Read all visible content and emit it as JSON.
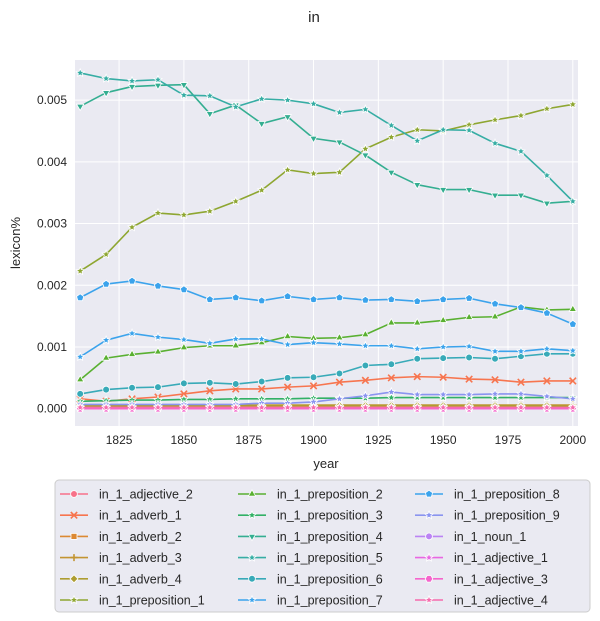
{
  "chart_data": {
    "type": "line",
    "title": "in",
    "xlabel": "year",
    "ylabel": "lexicon%",
    "xlim": [
      1808,
      2002
    ],
    "ylim": [
      -0.00028,
      0.00565
    ],
    "xticks": [
      1825,
      1850,
      1875,
      1900,
      1925,
      1950,
      1975,
      2000
    ],
    "yticks": [
      0.0,
      0.001,
      0.002,
      0.003,
      0.004,
      0.005
    ],
    "ytick_labels": [
      "0.000",
      "0.001",
      "0.002",
      "0.003",
      "0.004",
      "0.005"
    ],
    "grid": true,
    "legend_position": "bottom",
    "x": [
      1810,
      1820,
      1830,
      1840,
      1850,
      1860,
      1870,
      1880,
      1890,
      1900,
      1910,
      1920,
      1930,
      1940,
      1950,
      1960,
      1970,
      1980,
      1990,
      2000
    ],
    "series": [
      {
        "name": "in_1_adjective_2",
        "color": "#f77189",
        "marker": "circle",
        "values": [
          1e-05,
          1e-05,
          1e-05,
          1e-05,
          1e-05,
          1e-05,
          1e-05,
          1e-05,
          1e-05,
          1e-05,
          1e-05,
          1e-05,
          1e-05,
          1e-05,
          1e-05,
          1e-05,
          1e-05,
          1e-05,
          1e-05,
          1e-05
        ]
      },
      {
        "name": "in_1_adverb_1",
        "color": "#f7754f",
        "marker": "x",
        "values": [
          0.00016,
          0.00012,
          0.00016,
          0.00019,
          0.00024,
          0.00029,
          0.00032,
          0.00032,
          0.00035,
          0.00037,
          0.00043,
          0.00046,
          0.0005,
          0.00052,
          0.00051,
          0.00048,
          0.00047,
          0.00043,
          0.00045,
          0.00045
        ]
      },
      {
        "name": "in_1_adverb_2",
        "color": "#dc8932",
        "marker": "square",
        "values": [
          3e-05,
          3e-05,
          3e-05,
          3e-05,
          3e-05,
          3e-05,
          3e-05,
          3e-05,
          3e-05,
          3e-05,
          3e-05,
          3e-05,
          3e-05,
          3e-05,
          3e-05,
          3e-05,
          3e-05,
          3e-05,
          3e-05,
          3e-05
        ]
      },
      {
        "name": "in_1_adverb_3",
        "color": "#c39532",
        "marker": "plus",
        "values": [
          6e-05,
          6e-05,
          6e-05,
          6e-05,
          6e-05,
          6e-05,
          6e-05,
          6e-05,
          6e-05,
          6e-05,
          6e-05,
          6e-05,
          6e-05,
          6e-05,
          6e-05,
          6e-05,
          6e-05,
          6e-05,
          6e-05,
          6e-05
        ]
      },
      {
        "name": "in_1_adverb_4",
        "color": "#ae9d31",
        "marker": "diamond",
        "values": [
          4e-05,
          4e-05,
          5e-05,
          5e-05,
          5e-05,
          5e-05,
          5e-05,
          5e-05,
          5e-05,
          5e-05,
          5e-05,
          5e-05,
          5e-05,
          5e-05,
          5e-05,
          5e-05,
          5e-05,
          5e-05,
          5e-05,
          4e-05
        ]
      },
      {
        "name": "in_1_preposition_1",
        "color": "#8ea631",
        "marker": "star",
        "values": [
          0.00223,
          0.0025,
          0.00294,
          0.00317,
          0.00314,
          0.0032,
          0.00336,
          0.00354,
          0.00387,
          0.00381,
          0.00383,
          0.00421,
          0.0044,
          0.00452,
          0.0045,
          0.0046,
          0.00468,
          0.00475,
          0.00486,
          0.00493
        ]
      },
      {
        "name": "in_1_preposition_2",
        "color": "#59b031",
        "marker": "triangle-up",
        "values": [
          0.00047,
          0.00082,
          0.00088,
          0.00092,
          0.00099,
          0.00102,
          0.00102,
          0.00107,
          0.00117,
          0.00114,
          0.00115,
          0.0012,
          0.00139,
          0.00139,
          0.00143,
          0.00148,
          0.00149,
          0.00165,
          0.0016,
          0.00161
        ]
      },
      {
        "name": "in_1_preposition_3",
        "color": "#32b166",
        "marker": "star",
        "values": [
          0.00012,
          0.00013,
          0.00014,
          0.00014,
          0.00015,
          0.00015,
          0.00016,
          0.00016,
          0.00016,
          0.00017,
          0.00017,
          0.00017,
          0.00018,
          0.00018,
          0.00018,
          0.00018,
          0.00018,
          0.00018,
          0.00018,
          0.00018
        ]
      },
      {
        "name": "in_1_preposition_4",
        "color": "#34ae91",
        "marker": "triangle-down",
        "values": [
          0.0049,
          0.00512,
          0.00522,
          0.00524,
          0.00525,
          0.00478,
          0.00492,
          0.00462,
          0.00473,
          0.00438,
          0.00432,
          0.00411,
          0.00383,
          0.00363,
          0.00355,
          0.00355,
          0.00346,
          0.00346,
          0.00333,
          0.00336
        ]
      },
      {
        "name": "in_1_preposition_5",
        "color": "#36ada4",
        "marker": "star",
        "values": [
          0.00544,
          0.00535,
          0.00531,
          0.00533,
          0.00508,
          0.00507,
          0.00489,
          0.00502,
          0.005,
          0.00494,
          0.0048,
          0.00485,
          0.00459,
          0.00434,
          0.00452,
          0.00451,
          0.0043,
          0.00417,
          0.00378,
          0.00336
        ]
      },
      {
        "name": "in_1_preposition_6",
        "color": "#38aab8",
        "marker": "circle",
        "values": [
          0.00024,
          0.00031,
          0.00034,
          0.00035,
          0.00041,
          0.00042,
          0.0004,
          0.00044,
          0.0005,
          0.00051,
          0.00057,
          0.0007,
          0.00072,
          0.00081,
          0.00082,
          0.00083,
          0.00081,
          0.00085,
          0.00089,
          0.00089
        ]
      },
      {
        "name": "in_1_preposition_7",
        "color": "#3ba3ec",
        "marker": "star",
        "values": [
          0.00084,
          0.00111,
          0.00122,
          0.00116,
          0.00112,
          0.00106,
          0.00113,
          0.00113,
          0.00104,
          0.00107,
          0.00105,
          0.00102,
          0.00102,
          0.00097,
          0.001,
          0.00101,
          0.00093,
          0.00093,
          0.00097,
          0.00094
        ]
      },
      {
        "name": "in_1_preposition_8",
        "color": "#3ba3ec",
        "marker": "pentagon",
        "values": [
          0.0018,
          0.00202,
          0.00207,
          0.00199,
          0.00193,
          0.00177,
          0.0018,
          0.00175,
          0.00182,
          0.00177,
          0.0018,
          0.00176,
          0.00177,
          0.00174,
          0.00177,
          0.00179,
          0.0017,
          0.00164,
          0.00155,
          0.00137
        ]
      },
      {
        "name": "in_1_preposition_9",
        "color": "#8a94f0",
        "marker": "star",
        "values": [
          7e-05,
          7e-05,
          7e-05,
          7e-05,
          7e-05,
          7e-05,
          7e-05,
          9e-05,
          9e-05,
          0.00011,
          0.00016,
          0.00021,
          0.00027,
          0.00023,
          0.00023,
          0.00023,
          0.00024,
          0.00024,
          0.0002,
          0.00016
        ]
      },
      {
        "name": "in_1_noun_1",
        "color": "#bb83f4",
        "marker": "circle",
        "values": [
          1e-05,
          1e-05,
          1e-05,
          1e-05,
          1e-05,
          1e-05,
          1e-05,
          1e-05,
          1e-05,
          1e-05,
          1e-05,
          1e-05,
          1e-05,
          1e-05,
          1e-05,
          1e-05,
          1e-05,
          1e-05,
          1e-05,
          1e-05
        ]
      },
      {
        "name": "in_1_adjective_1",
        "color": "#e867e2",
        "marker": "star",
        "values": [
          1e-05,
          1e-05,
          1e-05,
          1e-05,
          1e-05,
          1e-05,
          1e-05,
          1e-05,
          1e-05,
          1e-05,
          1e-05,
          1e-05,
          1e-05,
          1e-05,
          1e-05,
          1e-05,
          1e-05,
          1e-05,
          1e-05,
          1e-05
        ]
      },
      {
        "name": "in_1_adjective_3",
        "color": "#f565cc",
        "marker": "hexagon",
        "values": [
          0.0,
          0.0,
          0.0,
          0.0,
          0.0,
          0.0,
          0.0,
          0.0,
          0.0,
          0.0,
          0.0,
          0.0,
          0.0,
          0.0,
          0.0,
          0.0,
          0.0,
          0.0,
          0.0,
          0.0
        ]
      },
      {
        "name": "in_1_adjective_4",
        "color": "#f66bad",
        "marker": "star",
        "values": [
          2e-05,
          2e-05,
          2e-05,
          2e-05,
          2e-05,
          2e-05,
          2e-05,
          2e-05,
          2e-05,
          2e-05,
          2e-05,
          2e-05,
          2e-05,
          2e-05,
          2e-05,
          2e-05,
          2e-05,
          2e-05,
          2e-05,
          2e-05
        ]
      }
    ]
  }
}
